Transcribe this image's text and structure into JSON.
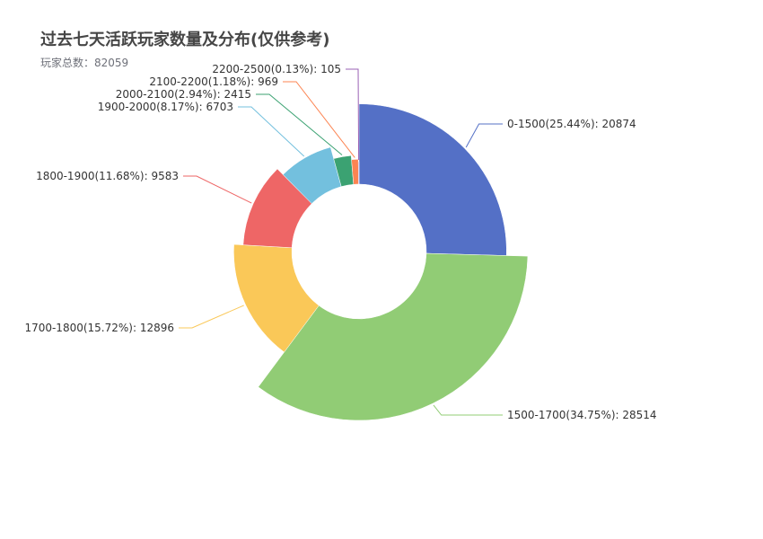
{
  "title": "过去七天活跃玩家数量及分布(仅供参考)",
  "subtitle": "玩家总数：82059",
  "chart_data": {
    "type": "pie",
    "variant": "rose-radius",
    "title": "过去七天活跃玩家数量及分布(仅供参考)",
    "subtitle": "玩家总数：82059",
    "total": 82059,
    "slices": [
      {
        "name": "0-1500",
        "value": 20874,
        "percent": 25.44,
        "label": "0-1500(25.44%): 20874",
        "color": "#5470c6",
        "label_side": "right"
      },
      {
        "name": "1500-1700",
        "value": 28514,
        "percent": 34.75,
        "label": "1500-1700(34.75%): 28514",
        "color": "#91cc75",
        "label_side": "right"
      },
      {
        "name": "1700-1800",
        "value": 12896,
        "percent": 15.72,
        "label": "1700-1800(15.72%): 12896",
        "color": "#fac858",
        "label_side": "left"
      },
      {
        "name": "1800-1900",
        "value": 9583,
        "percent": 11.68,
        "label": "1800-1900(11.68%): 9583",
        "color": "#ee6666",
        "label_side": "left"
      },
      {
        "name": "1900-2000",
        "value": 6703,
        "percent": 8.17,
        "label": "1900-2000(8.17%): 6703",
        "color": "#73c0de",
        "label_side": "left"
      },
      {
        "name": "2000-2100",
        "value": 2415,
        "percent": 2.94,
        "label": "2000-2100(2.94%): 2415",
        "color": "#3ba272",
        "label_side": "left"
      },
      {
        "name": "2100-2200",
        "value": 969,
        "percent": 1.18,
        "label": "2100-2200(1.18%): 969",
        "color": "#fc8452",
        "label_side": "left"
      },
      {
        "name": "2200-2500",
        "value": 105,
        "percent": 0.13,
        "label": "2200-2500(0.13%): 105",
        "color": "#9a60b4",
        "label_side": "left"
      }
    ]
  }
}
